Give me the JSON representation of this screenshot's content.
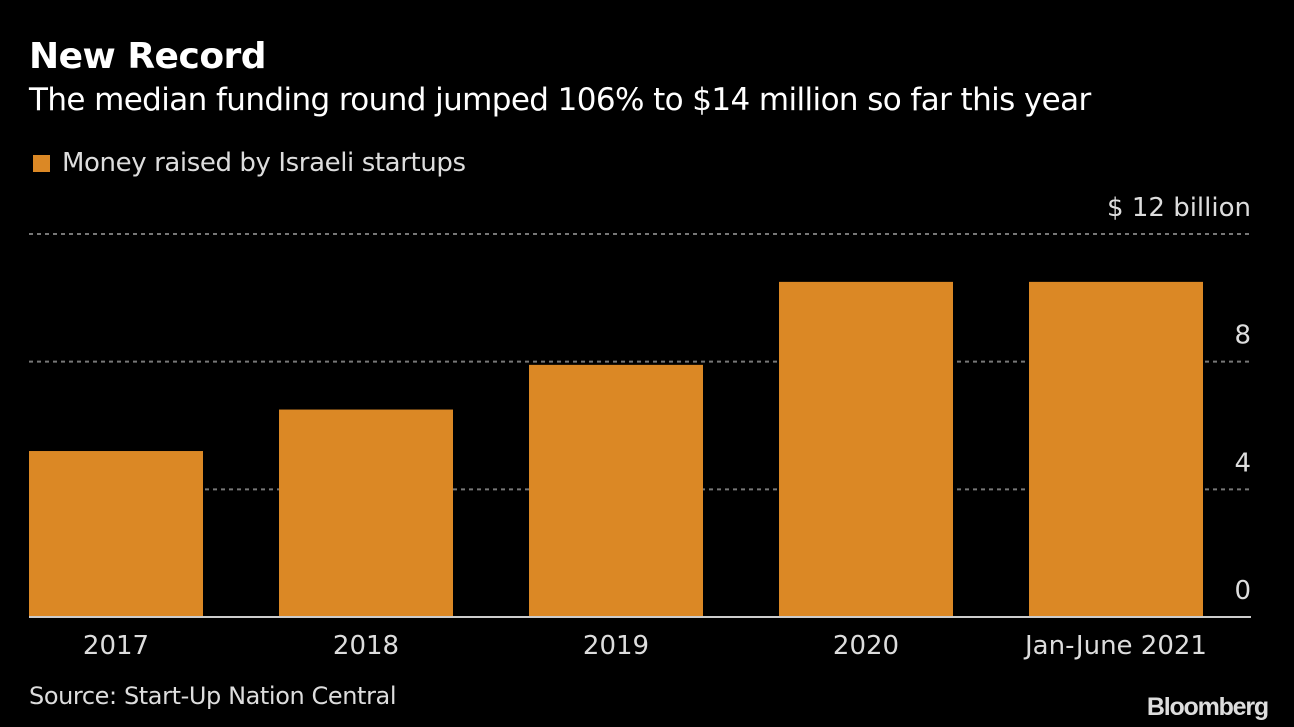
{
  "header": {
    "title": "New Record",
    "subtitle": "The median funding round jumped 106% to $14 million so far this year"
  },
  "legend": {
    "label": "Money raised by Israeli startups",
    "color": "#db8825"
  },
  "footer": {
    "source": "Source: Start-Up Nation Central",
    "brand": "Bloomberg"
  },
  "chart_data": {
    "type": "bar",
    "title": "New Record",
    "subtitle": "The median funding round jumped 106% to $14 million so far this year",
    "categories": [
      "2017",
      "2018",
      "2019",
      "2020",
      "Jan-June 2021"
    ],
    "series": [
      {
        "name": "Money raised by Israeli startups",
        "values": [
          5.2,
          6.5,
          7.9,
          10.5,
          10.5
        ],
        "color": "#db8825"
      }
    ],
    "xlabel": "",
    "ylabel": "$ billion",
    "ylim": [
      0,
      12
    ],
    "yticks": [
      0,
      4,
      8,
      12
    ],
    "ytick_labels": [
      "0",
      "4",
      "8",
      "$ 12 billion"
    ],
    "grid": true,
    "legend_position": "top-left",
    "yaxis_position": "right"
  }
}
